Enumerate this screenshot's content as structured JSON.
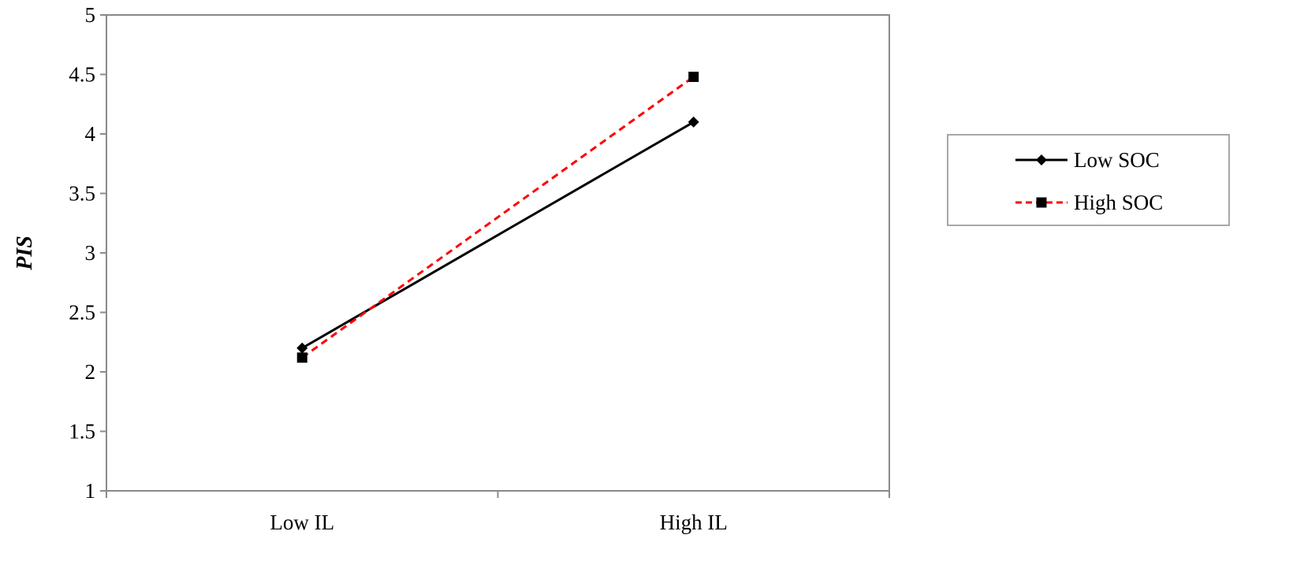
{
  "chart_data": {
    "type": "line",
    "title": "",
    "xlabel": "",
    "ylabel": "PIS",
    "categories": [
      "Low IL",
      "High IL"
    ],
    "ylim": [
      1,
      5
    ],
    "yticks": [
      "1",
      "1.5",
      "2",
      "2.5",
      "3",
      "3.5",
      "4",
      "4.5",
      "5"
    ],
    "grid": false,
    "legend": "right",
    "series": [
      {
        "name": "Low SOC",
        "values": [
          2.2,
          4.1
        ],
        "color": "#000000",
        "line": "solid",
        "marker": "diamond"
      },
      {
        "name": "High SOC",
        "values": [
          2.12,
          4.48
        ],
        "color": "#ff0000",
        "line": "dashed",
        "marker": "square"
      }
    ]
  }
}
